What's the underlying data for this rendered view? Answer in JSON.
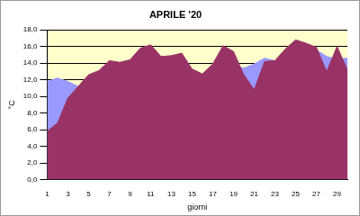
{
  "chart_data": {
    "type": "area",
    "title": "APRILE '20",
    "x_label": "giorni",
    "y_label": "°C",
    "categories": [
      1,
      null,
      3,
      null,
      5,
      null,
      7,
      null,
      9,
      null,
      11,
      null,
      13,
      null,
      15,
      null,
      17,
      null,
      19,
      null,
      21,
      null,
      23,
      null,
      25,
      null,
      27,
      null,
      29,
      null
    ],
    "series": [
      {
        "color": "#993366",
        "values": [
          5.8,
          6.8,
          9.8,
          11.2,
          12.6,
          13.1,
          14.3,
          14.1,
          14.4,
          15.8,
          16.2,
          14.8,
          14.9,
          15.2,
          13.3,
          12.7,
          13.9,
          16.1,
          15.4,
          12.6,
          10.8,
          14.2,
          14.3,
          15.7,
          16.8,
          16.4,
          15.9,
          13.0,
          16.0,
          13.2
        ]
      },
      {
        "color": "#9999ff",
        "values": [
          11.8,
          12.2,
          11.8,
          11.2,
          11.8,
          12.3,
          12.8,
          13.2,
          13.5,
          14.0,
          14.2,
          14.0,
          13.8,
          13.6,
          13.2,
          12.5,
          13.2,
          13.6,
          13.6,
          13.4,
          13.9,
          14.6,
          14.3,
          15.0,
          15.6,
          15.8,
          15.6,
          14.8,
          14.5,
          14.6
        ]
      }
    ],
    "ylim": [
      0,
      18
    ],
    "yticks": [
      {
        "value": 0,
        "label": "0,0"
      },
      {
        "value": 2,
        "label": "2,0"
      },
      {
        "value": 4,
        "label": "4,0"
      },
      {
        "value": 6,
        "label": "6,0"
      },
      {
        "value": 8,
        "label": "8,0"
      },
      {
        "value": 10,
        "label": "10,0"
      },
      {
        "value": 12,
        "label": "12,0"
      },
      {
        "value": 14,
        "label": "14,0"
      },
      {
        "value": 16,
        "label": "16,0"
      },
      {
        "value": 18,
        "label": "18,0"
      }
    ],
    "grid": true
  }
}
